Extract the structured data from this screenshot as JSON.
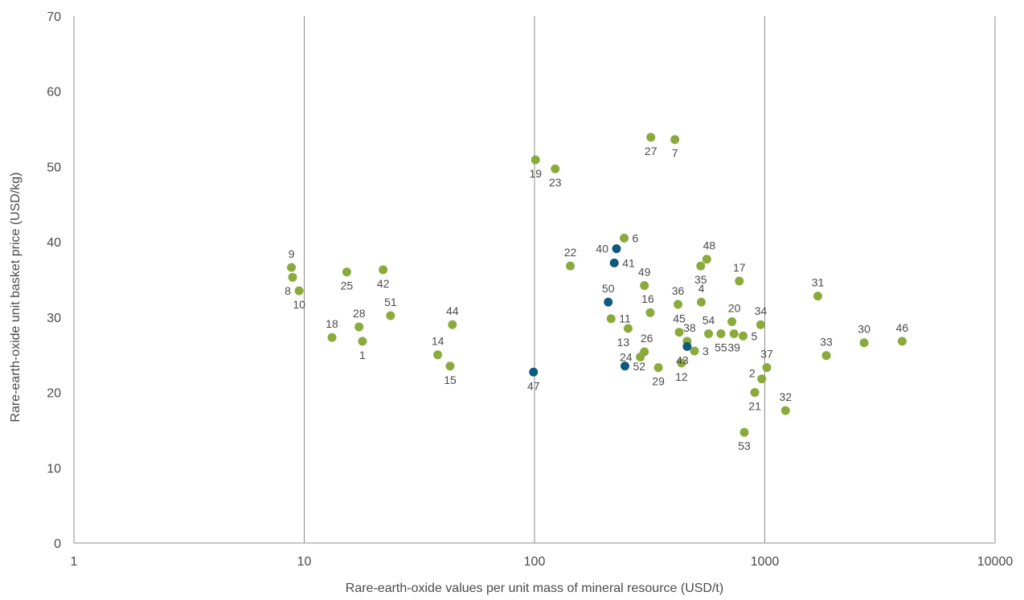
{
  "chart_data": {
    "type": "scatter",
    "title": "",
    "xlabel": "Rare-earth-oxide values per unit mass of mineral resource (USD/t)",
    "ylabel": "Rare-earth-oxide unit basket price (USD/kg)",
    "x_scale": "log",
    "xlim": [
      1,
      10000
    ],
    "ylim": [
      0,
      70
    ],
    "x_ticks": [
      1,
      10,
      100,
      1000,
      10000
    ],
    "x_tick_labels": [
      "1",
      "10",
      "100",
      "1000",
      "10000"
    ],
    "y_ticks": [
      0,
      10,
      20,
      30,
      40,
      50,
      60,
      70
    ],
    "y_tick_labels": [
      "0",
      "10",
      "20",
      "30",
      "40",
      "50",
      "60",
      "70"
    ],
    "grid": "vertical lines at x ticks",
    "legend": "none",
    "colors": {
      "green": "#8aab3c",
      "blue": "#0e5a7e"
    },
    "points": [
      {
        "label": "1",
        "x": 17.9,
        "y": 26.8,
        "color": "green",
        "pos": "below"
      },
      {
        "label": "2",
        "x": 970,
        "y": 21.8,
        "color": "green",
        "pos": "upper-left"
      },
      {
        "label": "3",
        "x": 495,
        "y": 25.5,
        "color": "green",
        "pos": "right"
      },
      {
        "label": "4",
        "x": 530,
        "y": 32.0,
        "color": "green",
        "pos": "above"
      },
      {
        "label": "5",
        "x": 805,
        "y": 27.5,
        "color": "green",
        "pos": "right"
      },
      {
        "label": "6",
        "x": 245,
        "y": 40.5,
        "color": "green",
        "pos": "right"
      },
      {
        "label": "7",
        "x": 407,
        "y": 53.6,
        "color": "green",
        "pos": "below"
      },
      {
        "label": "8",
        "x": 8.9,
        "y": 35.3,
        "color": "green",
        "pos": "below-left"
      },
      {
        "label": "9",
        "x": 8.8,
        "y": 36.6,
        "color": "green",
        "pos": "above"
      },
      {
        "label": "10",
        "x": 9.5,
        "y": 33.5,
        "color": "green",
        "pos": "below"
      },
      {
        "label": "11",
        "x": 215,
        "y": 29.8,
        "color": "green",
        "pos": "right"
      },
      {
        "label": "12",
        "x": 435,
        "y": 23.9,
        "color": "green",
        "pos": "below"
      },
      {
        "label": "13",
        "x": 255,
        "y": 28.5,
        "color": "green",
        "pos": "below-left"
      },
      {
        "label": "14",
        "x": 38,
        "y": 25.0,
        "color": "green",
        "pos": "above"
      },
      {
        "label": "15",
        "x": 43,
        "y": 23.5,
        "color": "green",
        "pos": "below"
      },
      {
        "label": "16",
        "x": 318,
        "y": 30.6,
        "color": "green",
        "pos": "above-left"
      },
      {
        "label": "17",
        "x": 775,
        "y": 34.8,
        "color": "green",
        "pos": "above"
      },
      {
        "label": "18",
        "x": 13.2,
        "y": 27.3,
        "color": "green",
        "pos": "above"
      },
      {
        "label": "19",
        "x": 101,
        "y": 50.9,
        "color": "green",
        "pos": "below"
      },
      {
        "label": "20",
        "x": 720,
        "y": 29.4,
        "color": "green",
        "pos": "above-right"
      },
      {
        "label": "21",
        "x": 905,
        "y": 20.0,
        "color": "green",
        "pos": "below"
      },
      {
        "label": "22",
        "x": 143,
        "y": 36.8,
        "color": "green",
        "pos": "above"
      },
      {
        "label": "23",
        "x": 123,
        "y": 49.7,
        "color": "green",
        "pos": "below"
      },
      {
        "label": "24",
        "x": 288,
        "y": 24.7,
        "color": "green",
        "pos": "left"
      },
      {
        "label": "25",
        "x": 15.3,
        "y": 36.0,
        "color": "green",
        "pos": "below"
      },
      {
        "label": "26",
        "x": 300,
        "y": 25.4,
        "color": "green",
        "pos": "above-right"
      },
      {
        "label": "27",
        "x": 320,
        "y": 53.9,
        "color": "green",
        "pos": "below"
      },
      {
        "label": "28",
        "x": 17.3,
        "y": 28.7,
        "color": "green",
        "pos": "above"
      },
      {
        "label": "29",
        "x": 345,
        "y": 23.3,
        "color": "green",
        "pos": "below"
      },
      {
        "label": "30",
        "x": 2700,
        "y": 26.6,
        "color": "green",
        "pos": "above"
      },
      {
        "label": "31",
        "x": 1700,
        "y": 32.8,
        "color": "green",
        "pos": "above"
      },
      {
        "label": "32",
        "x": 1230,
        "y": 17.6,
        "color": "green",
        "pos": "above"
      },
      {
        "label": "33",
        "x": 1850,
        "y": 24.9,
        "color": "green",
        "pos": "above"
      },
      {
        "label": "34",
        "x": 960,
        "y": 29.0,
        "color": "green",
        "pos": "above"
      },
      {
        "label": "35",
        "x": 527,
        "y": 36.8,
        "color": "green",
        "pos": "below"
      },
      {
        "label": "36",
        "x": 420,
        "y": 31.7,
        "color": "green",
        "pos": "above"
      },
      {
        "label": "37",
        "x": 1020,
        "y": 23.3,
        "color": "green",
        "pos": "above"
      },
      {
        "label": "38",
        "x": 460,
        "y": 26.8,
        "color": "green",
        "pos": "above-right"
      },
      {
        "label": "39",
        "x": 735,
        "y": 27.8,
        "color": "green",
        "pos": "below"
      },
      {
        "label": "40",
        "x": 227,
        "y": 39.1,
        "color": "blue",
        "pos": "left"
      },
      {
        "label": "41",
        "x": 222,
        "y": 37.2,
        "color": "blue",
        "pos": "right"
      },
      {
        "label": "42",
        "x": 22.0,
        "y": 36.3,
        "color": "green",
        "pos": "below"
      },
      {
        "label": "43",
        "x": 460,
        "y": 26.1,
        "color": "blue",
        "pos": "below-left"
      },
      {
        "label": "44",
        "x": 44,
        "y": 29.0,
        "color": "green",
        "pos": "above"
      },
      {
        "label": "45",
        "x": 425,
        "y": 28.0,
        "color": "green",
        "pos": "above"
      },
      {
        "label": "46",
        "x": 3950,
        "y": 26.8,
        "color": "green",
        "pos": "above"
      },
      {
        "label": "47",
        "x": 99,
        "y": 22.7,
        "color": "blue",
        "pos": "below"
      },
      {
        "label": "48",
        "x": 560,
        "y": 37.7,
        "color": "green",
        "pos": "above-right"
      },
      {
        "label": "49",
        "x": 300,
        "y": 34.2,
        "color": "green",
        "pos": "above"
      },
      {
        "label": "50",
        "x": 209,
        "y": 32.0,
        "color": "blue",
        "pos": "above"
      },
      {
        "label": "51",
        "x": 23.7,
        "y": 30.2,
        "color": "green",
        "pos": "above"
      },
      {
        "label": "52",
        "x": 247,
        "y": 23.5,
        "color": "blue",
        "pos": "right"
      },
      {
        "label": "53",
        "x": 815,
        "y": 14.7,
        "color": "green",
        "pos": "below"
      },
      {
        "label": "54",
        "x": 570,
        "y": 27.8,
        "color": "green",
        "pos": "above"
      },
      {
        "label": "55",
        "x": 645,
        "y": 27.8,
        "color": "green",
        "pos": "below"
      }
    ]
  }
}
